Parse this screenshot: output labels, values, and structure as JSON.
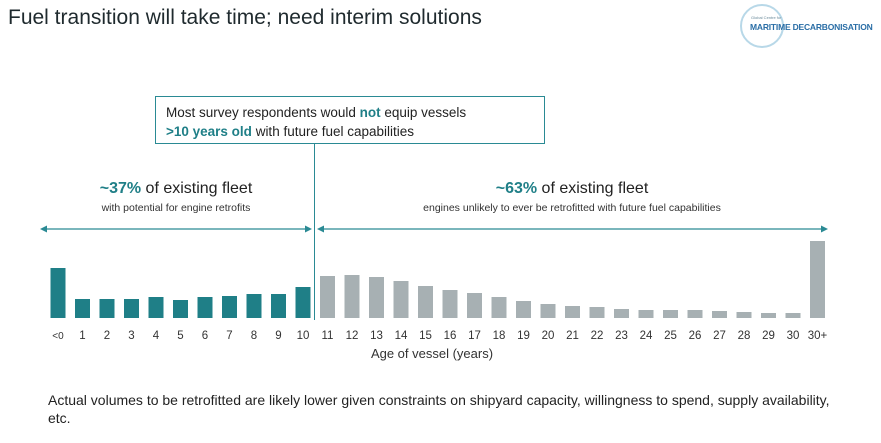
{
  "title": "Fuel transition will take time; need interim solutions",
  "logo": {
    "small_text": "Global Centre for",
    "main_text": "MARITIME DECARBONISATION"
  },
  "callout": {
    "line1_pre": "Most survey respondents would ",
    "line1_emph": "not",
    "line1_post": " equip vessels",
    "line2_emph": ">10 years old",
    "line2_post": " with future fuel capabilities"
  },
  "groups": {
    "left": {
      "pct": "~37%",
      "pct_text": " of existing fleet",
      "sub": "with potential for engine retrofits"
    },
    "right": {
      "pct": "~63%",
      "pct_text": " of existing fleet",
      "sub": "engines unlikely to ever be retrofitted with future fuel capabilities"
    }
  },
  "footnote": "Actual volumes to be retrofitted are likely lower given constraints on shipyard capacity, willingness to spend, supply availability, etc.",
  "colors": {
    "teal": "#1f7f87",
    "grey": "#a7b0b3",
    "arrow": "#2a8a94"
  },
  "chart_data": {
    "type": "bar",
    "xlabel": "Age of vessel (years)",
    "categories": [
      "<0",
      "1",
      "2",
      "3",
      "4",
      "5",
      "6",
      "7",
      "8",
      "9",
      "10",
      "11",
      "12",
      "13",
      "14",
      "15",
      "16",
      "17",
      "18",
      "19",
      "20",
      "21",
      "22",
      "23",
      "24",
      "25",
      "26",
      "27",
      "28",
      "29",
      "30",
      "30+"
    ],
    "values": [
      50,
      19,
      19,
      19,
      21,
      18,
      21,
      22,
      24,
      24,
      31,
      42,
      43,
      41,
      37,
      32,
      28,
      25,
      21,
      17,
      14,
      12,
      11,
      9,
      8,
      8,
      8,
      7,
      6,
      5,
      5,
      77
    ],
    "highlight_through_index": 10,
    "ylim": [
      0,
      80
    ],
    "grid": false
  }
}
